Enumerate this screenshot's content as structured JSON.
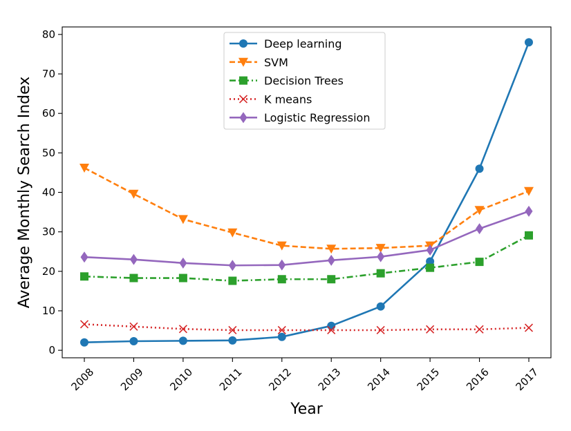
{
  "chart_data": {
    "type": "line",
    "xlabel": "Year",
    "ylabel": "Average Monthly Search Index",
    "categories": [
      "2008",
      "2009",
      "2010",
      "2011",
      "2012",
      "2013",
      "2014",
      "2015",
      "2016",
      "2017"
    ],
    "ylim": [
      -1.9,
      81.9
    ],
    "yticks": [
      0,
      10,
      20,
      30,
      40,
      50,
      60,
      70,
      80
    ],
    "grid": false,
    "legend_position": "top-center",
    "series": [
      {
        "name": "Deep learning",
        "color": "#1f77b4",
        "marker": "circle",
        "dash": "solid",
        "values": [
          2.0,
          2.3,
          2.4,
          2.5,
          3.4,
          6.2,
          11.1,
          22.5,
          46.0,
          78.0
        ]
      },
      {
        "name": "SVM",
        "color": "#ff7f0e",
        "marker": "triangle-down",
        "dash": "dashed",
        "values": [
          46.2,
          39.6,
          33.2,
          29.8,
          26.5,
          25.7,
          25.9,
          26.5,
          35.5,
          40.3
        ]
      },
      {
        "name": "Decision Trees",
        "color": "#2ca02c",
        "marker": "square",
        "dash": "dashdot",
        "values": [
          18.7,
          18.3,
          18.3,
          17.6,
          18.0,
          18.0,
          19.5,
          20.9,
          22.4,
          29.1
        ]
      },
      {
        "name": "K means",
        "color": "#d62728",
        "marker": "x",
        "dash": "dotted",
        "values": [
          6.6,
          6.0,
          5.4,
          5.1,
          5.1,
          5.1,
          5.1,
          5.3,
          5.3,
          5.7
        ]
      },
      {
        "name": "Logistic Regression",
        "color": "#9467bd",
        "marker": "diamond",
        "dash": "solid",
        "values": [
          23.6,
          23.0,
          22.1,
          21.5,
          21.6,
          22.8,
          23.7,
          25.4,
          30.8,
          35.2
        ]
      }
    ]
  }
}
